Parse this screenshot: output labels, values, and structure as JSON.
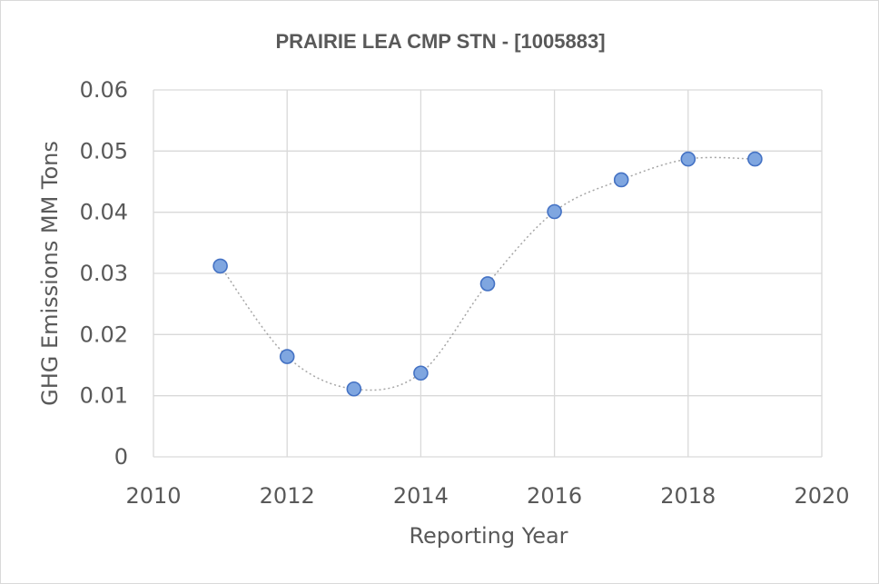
{
  "chart_data": {
    "type": "scatter",
    "title": "PRAIRIE LEA CMP STN - [1005883]",
    "xlabel": "Reporting Year",
    "ylabel": "GHG Emissions MM Tons",
    "xlim": [
      2010,
      2020
    ],
    "ylim": [
      0,
      0.06
    ],
    "xticks": [
      "2010",
      "2012",
      "2014",
      "2016",
      "2018",
      "2020"
    ],
    "yticks": [
      "0",
      "0.01",
      "0.02",
      "0.03",
      "0.04",
      "0.05",
      "0.06"
    ],
    "grid": true,
    "smooth_line": true,
    "series": [
      {
        "name": "GHG Emissions",
        "x": [
          2011,
          2012,
          2013,
          2014,
          2015,
          2016,
          2017,
          2018,
          2019
        ],
        "y": [
          0.0312,
          0.0164,
          0.0111,
          0.0137,
          0.0283,
          0.0401,
          0.0453,
          0.0487,
          0.0487
        ]
      }
    ],
    "colors": {
      "marker_fill": "#7fa6e0",
      "marker_stroke": "#4472c4",
      "line": "#a6a6a6",
      "grid": "#d9d9d9",
      "text": "#595959"
    }
  }
}
